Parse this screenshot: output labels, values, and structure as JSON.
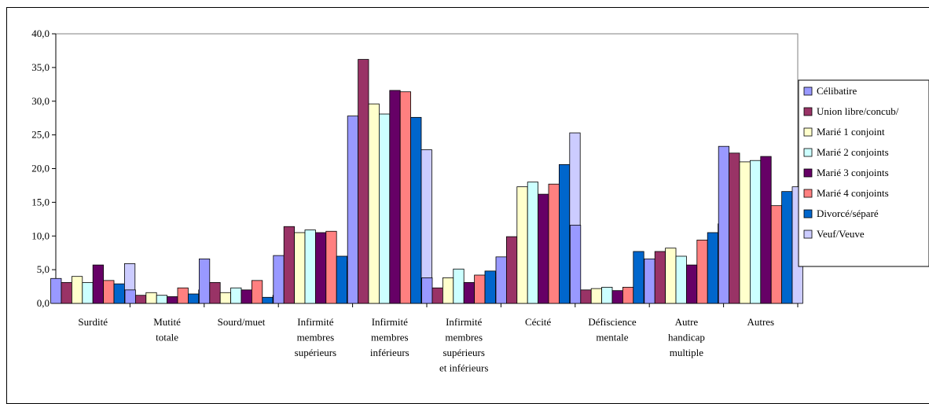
{
  "chart_data": {
    "type": "bar",
    "title": "",
    "xlabel": "",
    "ylabel": "",
    "ylim": [
      0,
      40
    ],
    "yticks": [
      "0,0",
      "5,0",
      "10,0",
      "15,0",
      "20,0",
      "25,0",
      "30,0",
      "35,0",
      "40,0"
    ],
    "categories": [
      [
        "Surdité"
      ],
      [
        "Mutité",
        "totale"
      ],
      [
        "Sourd/muet"
      ],
      [
        "Infirmité",
        "membres",
        "supérieurs"
      ],
      [
        "Infirmité",
        "membres",
        "inférieurs"
      ],
      [
        "Infirmité",
        "membres",
        "supérieurs",
        "et inférieurs"
      ],
      [
        "Cécité"
      ],
      [
        "Défiscience",
        "mentale"
      ],
      [
        "Autre",
        "handicap",
        "multiple"
      ],
      [
        "Autres"
      ]
    ],
    "legend_position": "right",
    "series": [
      {
        "name": "Célibatire",
        "color": "#9999ff",
        "values": [
          3.7,
          2.0,
          6.6,
          7.1,
          27.8,
          3.8,
          6.9,
          11.6,
          6.6,
          23.3
        ]
      },
      {
        "name": "Union libre/concub/",
        "color": "#993366",
        "values": [
          3.1,
          1.2,
          3.1,
          11.4,
          36.2,
          2.3,
          9.9,
          2.0,
          7.7,
          22.3
        ]
      },
      {
        "name": "Marié 1 conjoint",
        "color": "#ffffcc",
        "values": [
          4.0,
          1.6,
          1.6,
          10.5,
          29.6,
          3.8,
          17.3,
          2.2,
          8.2,
          21.0
        ]
      },
      {
        "name": "Marié 2 conjoints",
        "color": "#ccffff",
        "values": [
          3.1,
          1.2,
          2.3,
          10.9,
          28.1,
          5.1,
          18.0,
          2.4,
          7.0,
          21.2
        ]
      },
      {
        "name": "Marié 3 conjoints",
        "color": "#660066",
        "values": [
          5.7,
          1.0,
          2.0,
          10.5,
          31.6,
          3.1,
          16.2,
          1.9,
          5.7,
          21.8
        ]
      },
      {
        "name": "Marié 4 conjoints",
        "color": "#ff8080",
        "values": [
          3.4,
          2.3,
          3.4,
          10.7,
          31.4,
          4.2,
          17.7,
          2.4,
          9.4,
          14.5
        ]
      },
      {
        "name": "Divorcé/séparé",
        "color": "#0066cc",
        "values": [
          2.9,
          1.4,
          0.9,
          7.0,
          27.6,
          4.8,
          20.6,
          7.7,
          10.5,
          16.6
        ]
      },
      {
        "name": "Veuf/Veuve",
        "color": "#ccccff",
        "values": [
          5.9,
          2.0,
          1.2,
          6.2,
          22.8,
          3.8,
          25.3,
          3.4,
          11.8,
          17.3
        ]
      }
    ]
  }
}
